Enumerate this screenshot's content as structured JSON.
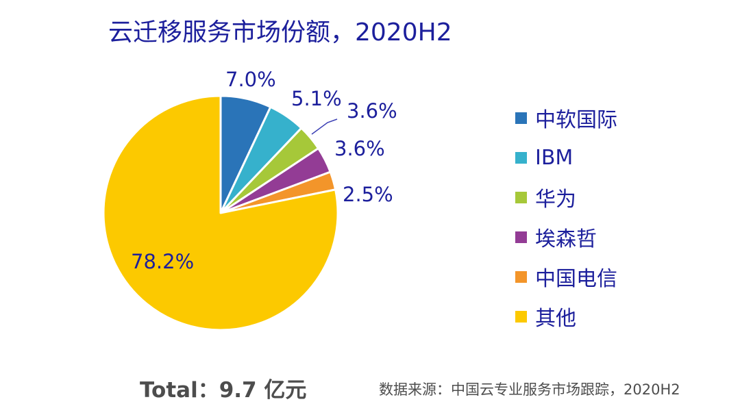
{
  "title": "云迁移服务市场份额，2020H2",
  "chart_data": {
    "type": "pie",
    "title": "云迁移服务市场份额，2020H2",
    "slices": [
      {
        "label": "中软国际",
        "value": 7.0,
        "display": "7.0%",
        "color": "#2a74b8"
      },
      {
        "label": "IBM",
        "value": 5.1,
        "display": "5.1%",
        "color": "#36b1cc"
      },
      {
        "label": "华为",
        "value": 3.6,
        "display": "3.6%",
        "color": "#a6c839"
      },
      {
        "label": "埃森哲",
        "value": 3.6,
        "display": "3.6%",
        "color": "#933c95"
      },
      {
        "label": "中国电信",
        "value": 2.5,
        "display": "2.5%",
        "color": "#f3952a"
      },
      {
        "label": "其他",
        "value": 78.2,
        "display": "78.2%",
        "color": "#fcc900"
      }
    ],
    "legend_position": "right"
  },
  "colors": {
    "title": "#1c1f9c",
    "labels": "#1c1f9c",
    "footer_text": "#4d4d4d",
    "background": "#ffffff",
    "slice_border": "#ffffff"
  },
  "footer": {
    "total": "Total：9.7 亿元",
    "source": "数据来源：中国云专业服务市场跟踪，2020H2"
  }
}
